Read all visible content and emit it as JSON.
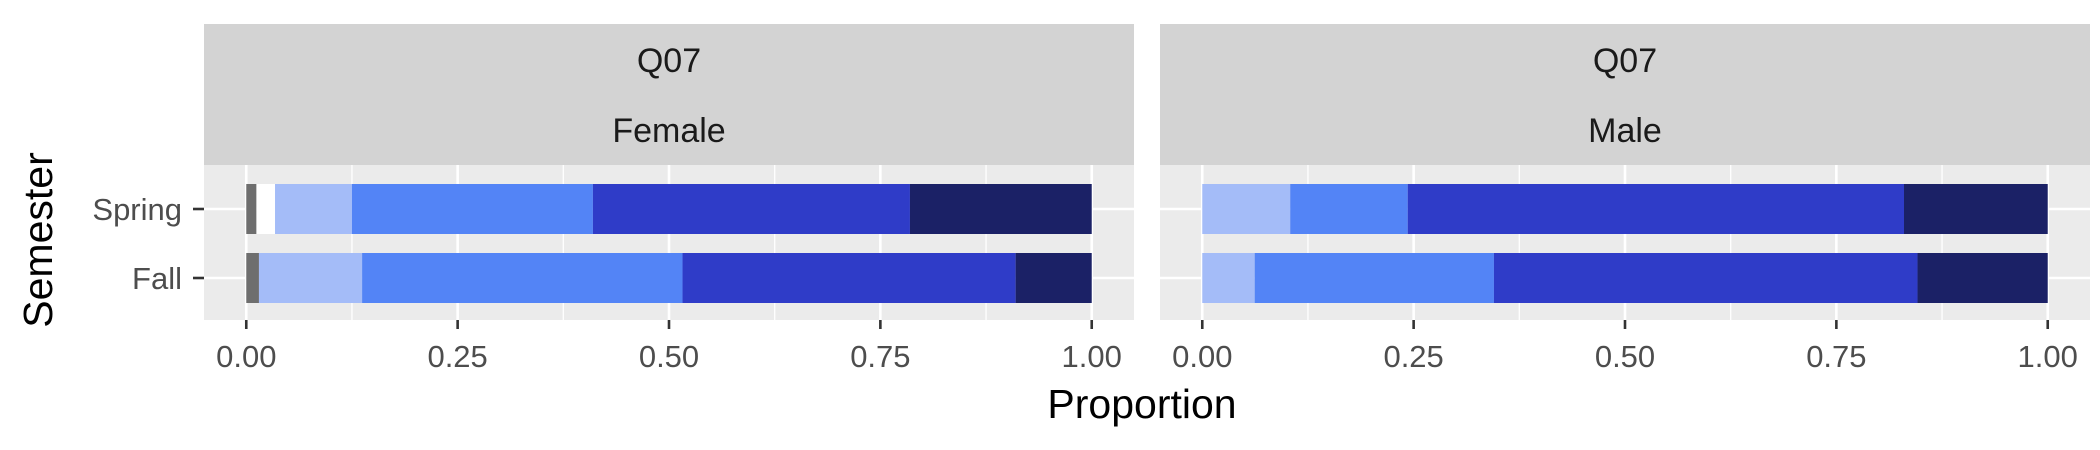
{
  "chart_data": {
    "type": "bar",
    "orientation": "horizontal",
    "stacked": true,
    "xlabel": "Proportion",
    "ylabel": "Semester",
    "xlim": [
      0,
      1
    ],
    "x_ticks": [
      "0.00",
      "0.25",
      "0.50",
      "0.75",
      "1.00"
    ],
    "categories": [
      "Spring",
      "Fall"
    ],
    "panels": [
      {
        "strip": [
          "Q07",
          "Female"
        ],
        "rows": [
          {
            "category": "Spring",
            "segments": [
              {
                "color": "#6e6e6e",
                "value": 0.012
              },
              {
                "color": "#ffffff",
                "value": 0.022
              },
              {
                "color": "#a4bcf8",
                "value": 0.091
              },
              {
                "color": "#5384f6",
                "value": 0.285
              },
              {
                "color": "#2f3cc8",
                "value": 0.375
              },
              {
                "color": "#1b2166",
                "value": 0.215
              }
            ]
          },
          {
            "category": "Fall",
            "segments": [
              {
                "color": "#6e6e6e",
                "value": 0.015
              },
              {
                "color": "#a4bcf8",
                "value": 0.122
              },
              {
                "color": "#5384f6",
                "value": 0.379
              },
              {
                "color": "#2f3cc8",
                "value": 0.394
              },
              {
                "color": "#1b2166",
                "value": 0.09
              }
            ]
          }
        ]
      },
      {
        "strip": [
          "Q07",
          "Male"
        ],
        "rows": [
          {
            "category": "Spring",
            "segments": [
              {
                "color": "#a4bcf8",
                "value": 0.104
              },
              {
                "color": "#5384f6",
                "value": 0.139
              },
              {
                "color": "#2f3cc8",
                "value": 0.587
              },
              {
                "color": "#1b2166",
                "value": 0.17
              }
            ]
          },
          {
            "category": "Fall",
            "segments": [
              {
                "color": "#a4bcf8",
                "value": 0.062
              },
              {
                "color": "#5384f6",
                "value": 0.283
              },
              {
                "color": "#2f3cc8",
                "value": 0.501
              },
              {
                "color": "#1b2166",
                "value": 0.154
              }
            ]
          }
        ]
      }
    ]
  }
}
